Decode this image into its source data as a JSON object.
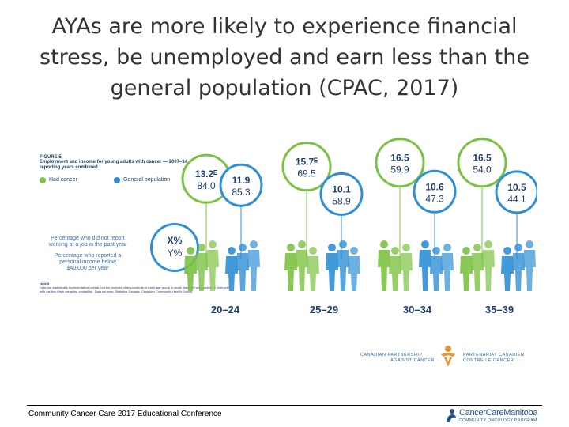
{
  "slide": {
    "title_line1": "AYAs are more likely to experience financial",
    "title_line2": "stress, be unemployed and earn less than the",
    "title_line3": "general population (CPAC, 2017)",
    "footer": "Community Cancer Care 2017 Educational Conference"
  },
  "figure": {
    "label": "FIGURE 5",
    "title": "Employment and income for young adults with cancer — 2007–14 reporting years combined",
    "legend": [
      {
        "name": "Had cancer",
        "color": "#7cc242"
      },
      {
        "name": "General population",
        "color": "#2f8fd6"
      }
    ],
    "key": {
      "line1a": "Percentage who did not report",
      "line1b": "working at a job in the past year",
      "line2a": "Percentage who reported a",
      "line2b": "personal income below",
      "line2c": "$40,000 per year",
      "x": "X%",
      "y": "Y%"
    },
    "note_title": "Note 5",
    "note_text": "Data are statistically representative overall, but the number of respondents in each age group is small. Interpret with caution. E Interpret with caution (high sampling variability). Data sources: Statistics Canada, Canadian Community Health Survey."
  },
  "chart_data": {
    "type": "infographic",
    "title": "Employment and income for young adults with cancer — 2007–14 reporting years combined",
    "categories": [
      "20–24",
      "25–29",
      "30–34",
      "35–39"
    ],
    "series": [
      {
        "name": "Had cancer",
        "color": "#7cc242"
      },
      {
        "name": "General population",
        "color": "#2f8fd6"
      }
    ],
    "values": [
      {
        "age": "20–24",
        "group": "Had cancer",
        "x_label": "13.2ᴱ",
        "x": 13.2,
        "y": 84.0
      },
      {
        "age": "20–24",
        "group": "General population",
        "x_label": "11.9",
        "x": 11.9,
        "y": 85.3
      },
      {
        "age": "25–29",
        "group": "Had cancer",
        "x_label": "15.7ᴱ",
        "x": 15.7,
        "y": 69.5
      },
      {
        "age": "25–29",
        "group": "General population",
        "x_label": "10.1",
        "x": 10.1,
        "y": 58.9
      },
      {
        "age": "30–34",
        "group": "Had cancer",
        "x_label": "16.5",
        "x": 16.5,
        "y": 59.9
      },
      {
        "age": "30–34",
        "group": "General population",
        "x_label": "10.6",
        "x": 10.6,
        "y": 47.3
      },
      {
        "age": "35–39",
        "group": "Had cancer",
        "x_label": "16.5",
        "x": 16.5,
        "y": 54.0
      },
      {
        "age": "35–39",
        "group": "General population",
        "x_label": "10.5",
        "x": 10.5,
        "y": 44.1
      }
    ]
  },
  "logos": {
    "cpac_en_1": "CANADIAN PARTNERSHIP",
    "cpac_en_2": "AGAINST CANCER",
    "cpac_fr_1": "PARTENARIAT CANADIEN",
    "cpac_fr_2": "CONTRE LE CANCER",
    "ccm_name": "CancerCareManitoba",
    "ccm_sub": "COMMUNITY ONCOLOGY PROGRAM",
    "cpac_color": "#e8962e"
  }
}
